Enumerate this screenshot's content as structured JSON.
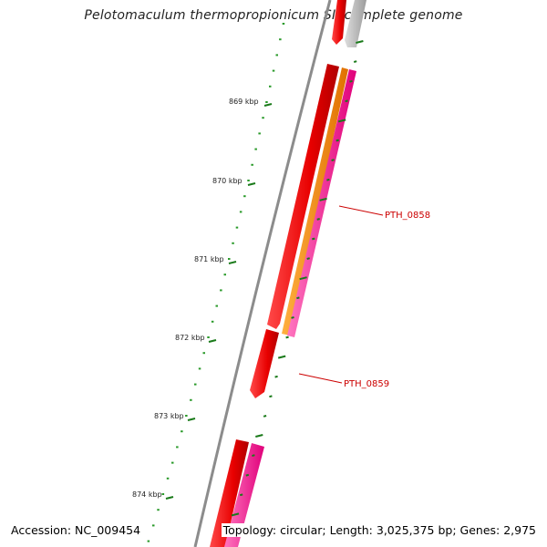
{
  "title": "Pelotomaculum thermopropionicum SI, complete genome",
  "footer": {
    "accession": "Accession: NC_009454",
    "summary": "Topology: circular; Length: 3,025,375 bp; Genes: 2,975"
  },
  "colors": {
    "backbone": "#8c8c8c",
    "major_tick": "#1a7a1a",
    "minor_tick": "#2a9a2a",
    "gene_red": "#ee0000",
    "gene_orange": "#ff8c00",
    "gene_pink": "#ff2a9a",
    "gene_grey": "#bdbdbd",
    "label_red": "#cc0000"
  },
  "ticks": [
    {
      "kbp": 869,
      "label": "869 kbp"
    },
    {
      "kbp": 870,
      "label": "870 kbp"
    },
    {
      "kbp": 871,
      "label": "871 kbp"
    },
    {
      "kbp": 872,
      "label": "872 kbp"
    },
    {
      "kbp": 873,
      "label": "873 kbp"
    },
    {
      "kbp": 874,
      "label": "874 kbp"
    }
  ],
  "gene_labels": [
    {
      "label": "PTH_0858"
    },
    {
      "label": "PTH_0859"
    }
  ]
}
